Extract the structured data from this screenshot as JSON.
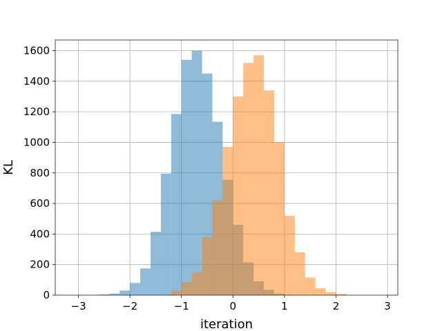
{
  "chart_data": {
    "type": "histogram",
    "title": "",
    "xlabel": "iteration",
    "ylabel": "KL",
    "xlim": [
      -3.45,
      3.2
    ],
    "ylim": [
      0,
      1670
    ],
    "xticks": [
      -3,
      -2,
      -1,
      0,
      1,
      2,
      3
    ],
    "xtick_labels": [
      "−3",
      "−2",
      "−1",
      "0",
      "1",
      "2",
      "3"
    ],
    "yticks": [
      0,
      200,
      400,
      600,
      800,
      1000,
      1200,
      1400,
      1600
    ],
    "ytick_labels": [
      "0",
      "200",
      "400",
      "600",
      "800",
      "1000",
      "1200",
      "1400",
      "1600"
    ],
    "grid": true,
    "legend": "none",
    "series": [
      {
        "color": "#1f77b4",
        "opacity": 0.5,
        "bin_edges": [
          -2.6,
          -2.4,
          -2.2,
          -2.0,
          -1.8,
          -1.6,
          -1.4,
          -1.2,
          -1.0,
          -0.8,
          -0.6,
          -0.4,
          -0.2,
          0.0,
          0.2,
          0.4,
          0.6,
          0.8,
          1.0,
          1.2
        ],
        "counts": [
          5,
          10,
          30,
          80,
          175,
          415,
          795,
          1185,
          1540,
          1600,
          1450,
          1135,
          755,
          460,
          215,
          90,
          35,
          10,
          3
        ]
      },
      {
        "color": "#ff7f0e",
        "opacity": 0.5,
        "bin_edges": [
          -1.4,
          -1.2,
          -1.0,
          -0.8,
          -0.6,
          -0.4,
          -0.2,
          0.0,
          0.2,
          0.4,
          0.6,
          0.8,
          1.0,
          1.2,
          1.4,
          1.6,
          1.8,
          2.0,
          2.2
        ],
        "counts": [
          5,
          30,
          85,
          150,
          380,
          620,
          970,
          1300,
          1520,
          1570,
          1340,
          1000,
          520,
          280,
          115,
          45,
          20,
          8
        ]
      }
    ]
  }
}
